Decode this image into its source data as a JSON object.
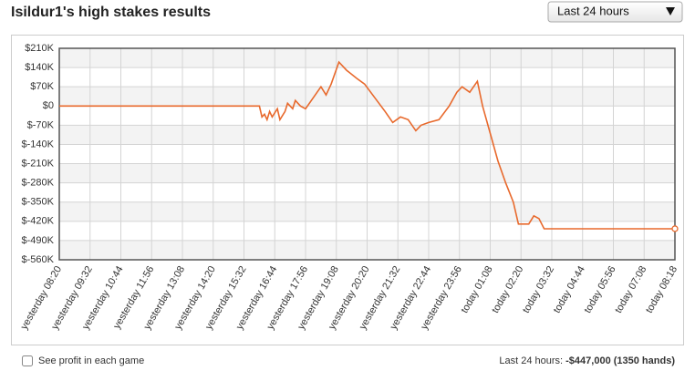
{
  "title": "Isildur1's high stakes results",
  "period_select": "Last 24 hours",
  "checkbox_label": "See profit in each game",
  "summary": {
    "label": "Last 24 hours:",
    "value": "-$447,000 (1350 hands)"
  },
  "chart_data": {
    "type": "line",
    "x": [
      0,
      7.8,
      7.9,
      8.0,
      8.1,
      8.2,
      8.3,
      8.5,
      8.6,
      8.8,
      8.9,
      9.1,
      9.2,
      9.4,
      9.6,
      10.2,
      10.4,
      10.6,
      10.9,
      11.2,
      11.6,
      11.9,
      12.3,
      12.7,
      13.0,
      13.3,
      13.6,
      13.9,
      14.1,
      14.4,
      14.8,
      15.2,
      15.5,
      15.7,
      16.0,
      16.3,
      16.5,
      16.8,
      17.1,
      17.4,
      17.7,
      17.9,
      18.3,
      18.5,
      18.7,
      18.9,
      24
    ],
    "series": [
      {
        "name": "profit",
        "color": "#e8692c",
        "values": [
          0,
          0,
          -40000,
          -30000,
          -50000,
          -20000,
          -40000,
          -10000,
          -50000,
          -20000,
          10000,
          -10000,
          20000,
          0,
          -10000,
          70000,
          40000,
          80000,
          160000,
          130000,
          100000,
          80000,
          30000,
          -20000,
          -60000,
          -40000,
          -50000,
          -90000,
          -70000,
          -60000,
          -50000,
          0,
          50000,
          70000,
          50000,
          90000,
          0,
          -100000,
          -200000,
          -280000,
          -350000,
          -430000,
          -430000,
          -400000,
          -410000,
          -447000,
          -447000
        ]
      }
    ],
    "xlim": [
      0,
      24
    ],
    "xticks": [
      {
        "value": 0,
        "label": "yesterday 08:20"
      },
      {
        "value": 1.2,
        "label": "yesterday 09:32"
      },
      {
        "value": 2.4,
        "label": "yesterday 10:44"
      },
      {
        "value": 3.6,
        "label": "yesterday 11:56"
      },
      {
        "value": 4.8,
        "label": "yesterday 13:08"
      },
      {
        "value": 6,
        "label": "yesterday 14:20"
      },
      {
        "value": 7.2,
        "label": "yesterday 15:32"
      },
      {
        "value": 8.4,
        "label": "yesterday 16:44"
      },
      {
        "value": 9.6,
        "label": "yesterday 17:56"
      },
      {
        "value": 10.8,
        "label": "yesterday 19:08"
      },
      {
        "value": 12,
        "label": "yesterday 20:20"
      },
      {
        "value": 13.2,
        "label": "yesterday 21:32"
      },
      {
        "value": 14.4,
        "label": "yesterday 22:44"
      },
      {
        "value": 15.6,
        "label": "yesterday 23:56"
      },
      {
        "value": 16.8,
        "label": "today 01:08"
      },
      {
        "value": 18,
        "label": "today 02:20"
      },
      {
        "value": 19.2,
        "label": "today 03:32"
      },
      {
        "value": 20.4,
        "label": "today 04:44"
      },
      {
        "value": 21.6,
        "label": "today 05:56"
      },
      {
        "value": 22.8,
        "label": "today 07:08"
      },
      {
        "value": 24,
        "label": "today 08:18"
      }
    ],
    "ylim": [
      -560000,
      210000
    ],
    "yticks": [
      {
        "value": 210000,
        "label": "$210K"
      },
      {
        "value": 140000,
        "label": "$140K"
      },
      {
        "value": 70000,
        "label": "$70K"
      },
      {
        "value": 0,
        "label": "$0"
      },
      {
        "value": -70000,
        "label": "$-70K"
      },
      {
        "value": -140000,
        "label": "$-140K"
      },
      {
        "value": -210000,
        "label": "$-210K"
      },
      {
        "value": -280000,
        "label": "$-280K"
      },
      {
        "value": -350000,
        "label": "$-350K"
      },
      {
        "value": -420000,
        "label": "$-420K"
      },
      {
        "value": -490000,
        "label": "$-490K"
      },
      {
        "value": -560000,
        "label": "$-560K"
      }
    ],
    "grid": true
  }
}
